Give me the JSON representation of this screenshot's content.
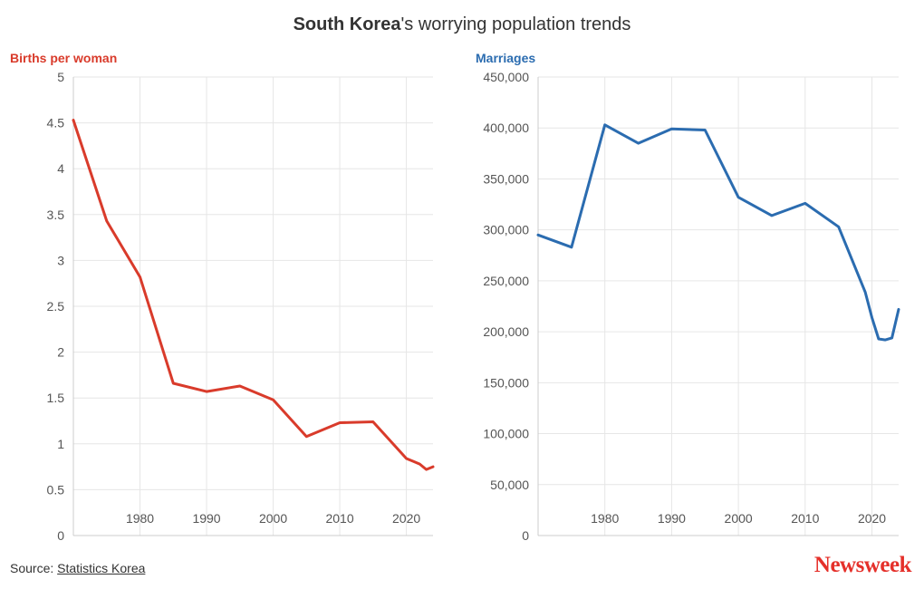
{
  "title": {
    "bold": "South Korea",
    "rest": "'s worrying population trends"
  },
  "source": {
    "prefix": "Source: ",
    "link_text": "Statistics Korea"
  },
  "brand": "Newsweek",
  "colors": {
    "births": "#d93b2b",
    "marriages": "#2b6cb0",
    "grid": "#e6e6e6",
    "axis": "#cccccc"
  },
  "chart_data": [
    {
      "type": "line",
      "title": "Births per woman",
      "xlabel": "",
      "ylabel": "",
      "xlim": [
        1970,
        2024
      ],
      "ylim": [
        0,
        5
      ],
      "x_ticks": [
        1980,
        1990,
        2000,
        2010,
        2020
      ],
      "y_ticks": [
        0,
        0.5,
        1,
        1.5,
        2,
        2.5,
        3,
        3.5,
        4,
        4.5,
        5
      ],
      "y_tick_labels": [
        "0",
        "0.5",
        "1",
        "1.5",
        "2",
        "2.5",
        "3",
        "3.5",
        "4",
        "4.5",
        "5"
      ],
      "grid": true,
      "series": [
        {
          "x": [
            1970,
            1975,
            1980,
            1985,
            1990,
            1995,
            2000,
            2005,
            2010,
            2015,
            2020,
            2021,
            2022,
            2023,
            2024
          ],
          "y": [
            4.53,
            3.43,
            2.82,
            1.66,
            1.57,
            1.63,
            1.48,
            1.08,
            1.23,
            1.24,
            0.84,
            0.81,
            0.78,
            0.72,
            0.75
          ]
        }
      ]
    },
    {
      "type": "line",
      "title": "Marriages",
      "xlabel": "",
      "ylabel": "",
      "xlim": [
        1970,
        2024
      ],
      "ylim": [
        0,
        450000
      ],
      "x_ticks": [
        1980,
        1990,
        2000,
        2010,
        2020
      ],
      "y_ticks": [
        0,
        50000,
        100000,
        150000,
        200000,
        250000,
        300000,
        350000,
        400000,
        450000
      ],
      "y_tick_labels": [
        "0",
        "50,000",
        "100,000",
        "150,000",
        "200,000",
        "250,000",
        "300,000",
        "350,000",
        "400,000",
        "450,000"
      ],
      "grid": true,
      "series": [
        {
          "x": [
            1970,
            1975,
            1980,
            1985,
            1990,
            1995,
            2000,
            2005,
            2010,
            2015,
            2019,
            2020,
            2021,
            2022,
            2023,
            2024
          ],
          "y": [
            295000,
            283000,
            403000,
            385000,
            399000,
            398000,
            332000,
            314000,
            326000,
            303000,
            239000,
            214000,
            193000,
            192000,
            194000,
            222000
          ]
        }
      ]
    }
  ]
}
